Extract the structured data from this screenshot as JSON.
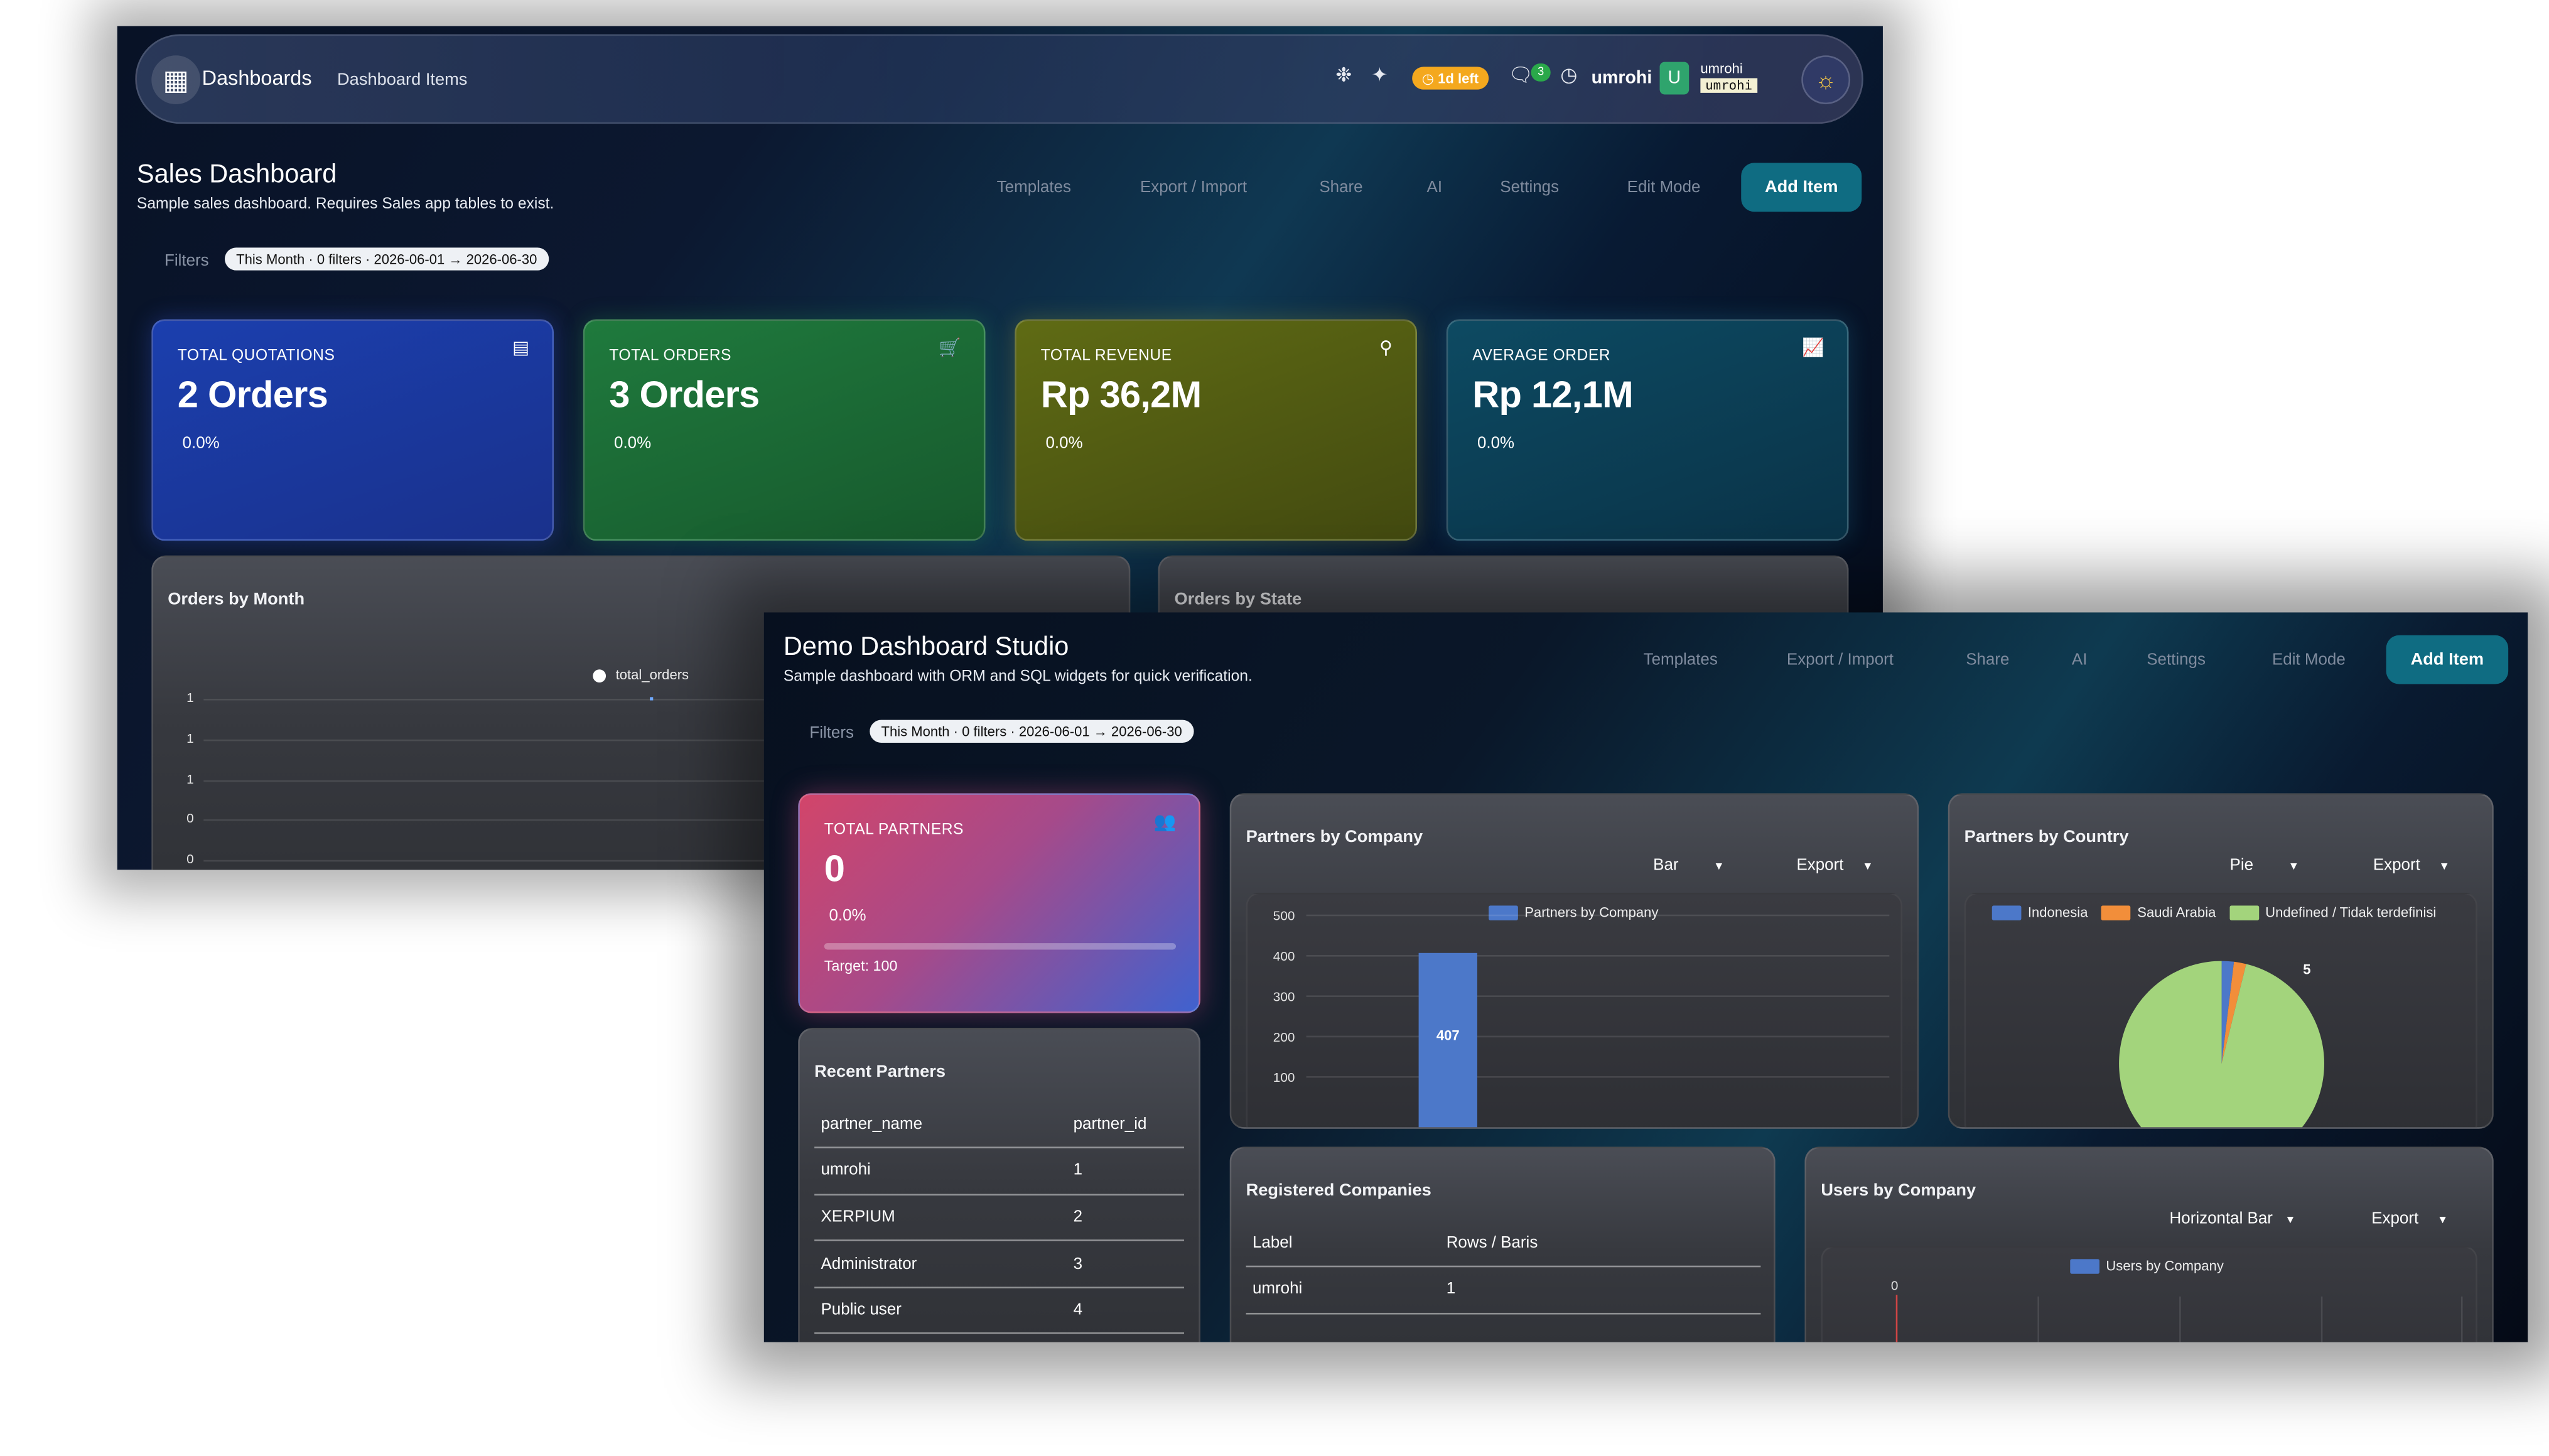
{
  "colors": {
    "accent": "#0f6c82",
    "trial": "#f4a81e",
    "bar": "#4c78c9",
    "pie_green": "#a3d47c",
    "pie_orange": "#f28e3a"
  },
  "topbar": {
    "app_title": "Dashboards",
    "breadcrumb": "Dashboard Items",
    "trial_badge": "1d left",
    "chat_count": "3",
    "username": "umrohi",
    "avatar_initial": "U",
    "account_name": "umrohi",
    "account_db": "umrohi",
    "icons": [
      "apps-grid-icon",
      "bug-icon",
      "magic-wand-icon",
      "clock-icon",
      "chat-icon",
      "activity-clock-icon",
      "sun-icon"
    ]
  },
  "toolbar": {
    "templates": "Templates",
    "export_import": "Export / Import",
    "share": "Share",
    "ai": "AI",
    "settings": "Settings",
    "edit_mode": "Edit Mode",
    "add_item": "Add Item"
  },
  "filters": {
    "label": "Filters",
    "summary": "This Month · 0 filters · 2026-06-01 → 2026-06-30"
  },
  "sales_dashboard": {
    "title": "Sales Dashboard",
    "subtitle": "Sample sales dashboard. Requires Sales app tables to exist.",
    "cards": [
      {
        "label": "TOTAL QUOTATIONS",
        "value": "2 Orders",
        "change": "0.0%",
        "icon": "document-icon"
      },
      {
        "label": "TOTAL ORDERS",
        "value": "3 Orders",
        "change": "0.0%",
        "icon": "cart-icon"
      },
      {
        "label": "TOTAL REVENUE",
        "value": "Rp 36,2M",
        "change": "0.0%",
        "icon": "tag-icon"
      },
      {
        "label": "AVERAGE ORDER",
        "value": "Rp 12,1M",
        "change": "0.0%",
        "icon": "trend-chart-icon"
      }
    ],
    "orders_by_month": {
      "title": "Orders by Month",
      "legend": "total_orders",
      "y_ticks": [
        "1",
        "1",
        "1",
        "0",
        "0"
      ]
    },
    "orders_by_state": {
      "title": "Orders by State"
    }
  },
  "demo_dashboard": {
    "title": "Demo Dashboard Studio",
    "subtitle": "Sample dashboard with ORM and SQL widgets for quick verification.",
    "total_partners": {
      "label": "TOTAL PARTNERS",
      "value": "0",
      "change": "0.0%",
      "progress": 0,
      "target": "Target: 100",
      "icon": "users-icon"
    },
    "partners_by_company": {
      "title": "Partners by Company",
      "chart_type": "Bar",
      "export": "Export"
    },
    "partners_by_country": {
      "title": "Partners by Country",
      "chart_type": "Pie",
      "export": "Export"
    },
    "recent_partners": {
      "title": "Recent Partners",
      "columns": [
        "partner_name",
        "partner_id"
      ],
      "rows": [
        [
          "umrohi",
          "1"
        ],
        [
          "XERPIUM",
          "2"
        ],
        [
          "Administrator",
          "3"
        ],
        [
          "Public user",
          "4"
        ]
      ]
    },
    "registered_companies": {
      "title": "Registered Companies",
      "columns": [
        "Label",
        "Rows / Baris"
      ],
      "rows": [
        [
          "umrohi",
          "1"
        ]
      ]
    },
    "users_by_company": {
      "title": "Users by Company",
      "chart_type": "Horizontal Bar",
      "export": "Export"
    }
  },
  "chart_data": [
    {
      "type": "line",
      "title": "Orders by Month",
      "series": [
        {
          "name": "total_orders",
          "values": [
            1
          ]
        }
      ],
      "y_tick_labels": [
        "1",
        "1",
        "1",
        "0",
        "0"
      ]
    },
    {
      "type": "bar",
      "title": "Partners by Company",
      "series": [
        {
          "name": "Partners by Company",
          "values": [
            407
          ]
        }
      ],
      "data_labels": [
        "407"
      ],
      "y_ticks": [
        100,
        200,
        300,
        400,
        500
      ],
      "ylim": [
        0,
        500
      ]
    },
    {
      "type": "pie",
      "title": "Partners by Country",
      "categories": [
        "Indonesia",
        "Saudi Arabia",
        "Undefined / Tidak terdefinisi"
      ],
      "values": [
        0.1,
        0.1,
        5
      ],
      "data_labels": [
        "5"
      ]
    },
    {
      "type": "bar",
      "title": "Users by Company",
      "series": [
        {
          "name": "Users by Company",
          "values": []
        }
      ],
      "x_tick_labels": [
        "0"
      ]
    }
  ]
}
